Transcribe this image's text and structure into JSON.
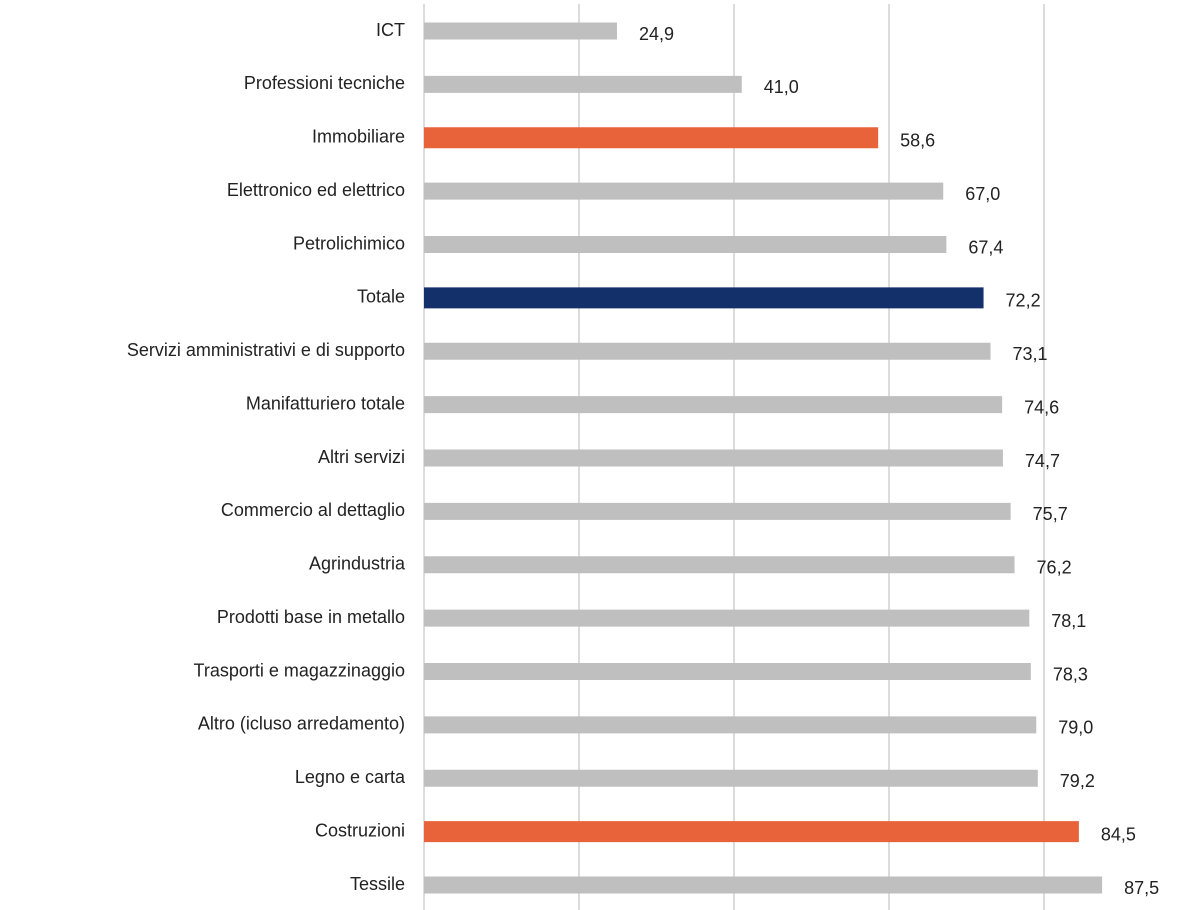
{
  "chart_data": {
    "type": "barh",
    "categories": [
      "ICT",
      "Professioni tecniche",
      "Immobiliare",
      "Elettronico ed elettrico",
      "Petrolichimico",
      "Totale",
      "Servizi amministrativi e di supporto",
      "Manifatturiero totale",
      "Altri servizi",
      "Commercio al dettaglio",
      "Agrindustria",
      "Prodotti base in metallo",
      "Trasporti e magazzinaggio",
      "Altro (icluso arredamento)",
      "Legno e carta",
      "Costruzioni",
      "Tessile"
    ],
    "values": [
      24.9,
      41.0,
      58.6,
      67.0,
      67.4,
      72.2,
      73.1,
      74.6,
      74.7,
      75.7,
      76.2,
      78.1,
      78.3,
      79.0,
      79.2,
      84.5,
      87.5
    ],
    "value_labels": [
      "24,9",
      "41,0",
      "58,6",
      "67,0",
      "67,4",
      "72,2",
      "73,1",
      "74,6",
      "74,7",
      "75,7",
      "76,2",
      "78,1",
      "78,3",
      "79,0",
      "79,2",
      "84,5",
      "87,5"
    ],
    "colors": [
      "#bfbfbf",
      "#bfbfbf",
      "#e8623a",
      "#bfbfbf",
      "#bfbfbf",
      "#14306b",
      "#bfbfbf",
      "#bfbfbf",
      "#bfbfbf",
      "#bfbfbf",
      "#bfbfbf",
      "#bfbfbf",
      "#bfbfbf",
      "#bfbfbf",
      "#bfbfbf",
      "#e8623a",
      "#bfbfbf"
    ],
    "xlim": [
      0,
      100
    ],
    "xticks": [
      0,
      20,
      40,
      60,
      80
    ],
    "grid": true
  }
}
